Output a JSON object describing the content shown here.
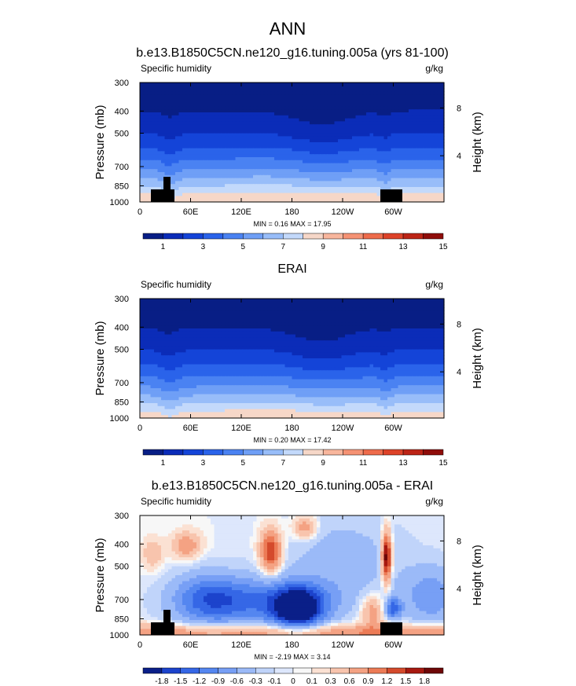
{
  "page_title": "ANN",
  "colors": {
    "abs_scale": [
      "#081e85",
      "#0b2cb8",
      "#1444d8",
      "#2a63ea",
      "#4a82f2",
      "#6f9ff6",
      "#98bdf9",
      "#c3d9fb",
      "#f6d7c8",
      "#f8b69d",
      "#f59274",
      "#ee6b4b",
      "#dd4229",
      "#bc2416",
      "#8f0d0a"
    ],
    "diff_scale": [
      "#0a1f88",
      "#1c43cc",
      "#3567e6",
      "#5486f0",
      "#779ff5",
      "#9bbaf8",
      "#c0d4fa",
      "#dde7fc",
      "#f7f7f7",
      "#fbe1d3",
      "#f8c4ad",
      "#f4a283",
      "#ec7b56",
      "#d44a2c",
      "#a71910",
      "#6e0707"
    ],
    "terrain": "#000000"
  },
  "chart_data": [
    {
      "type": "heatmap",
      "title": "b.e13.B1850C5CN.ne120_g16.tuning.005a (yrs 81-100)",
      "left_label": "Specific humidity",
      "right_label": "g/kg",
      "ylabel": "Pressure (mb)",
      "y2label": "Height (km)",
      "x_ticks": [
        "0",
        "60E",
        "120E",
        "180",
        "120W",
        "60W"
      ],
      "x_tick_lon": [
        0,
        60,
        120,
        180,
        240,
        300
      ],
      "xlim": [
        0,
        360
      ],
      "y_ticks": [
        "300",
        "400",
        "500",
        "700",
        "850",
        "1000"
      ],
      "y_tick_p": [
        300,
        400,
        500,
        700,
        850,
        1000
      ],
      "ylim": [
        300,
        1000
      ],
      "y2_ticks": [
        "8",
        "4"
      ],
      "y2_tick_km": [
        8,
        4
      ],
      "stats": "MIN =  0.16  MAX =  17.95",
      "min": 0.16,
      "max": 17.95,
      "colorbar_labels": [
        "1",
        "3",
        "5",
        "7",
        "9",
        "11",
        "13",
        "15"
      ],
      "colorbar_levels": [
        1,
        3,
        5,
        7,
        9,
        11,
        13,
        15
      ],
      "field": "model"
    },
    {
      "type": "heatmap",
      "title": "ERAI",
      "left_label": "Specific humidity",
      "right_label": "g/kg",
      "ylabel": "Pressure (mb)",
      "y2label": "Height (km)",
      "x_ticks": [
        "0",
        "60E",
        "120E",
        "180",
        "120W",
        "60W"
      ],
      "x_tick_lon": [
        0,
        60,
        120,
        180,
        240,
        300
      ],
      "xlim": [
        0,
        360
      ],
      "y_ticks": [
        "300",
        "400",
        "500",
        "700",
        "850",
        "1000"
      ],
      "y_tick_p": [
        300,
        400,
        500,
        700,
        850,
        1000
      ],
      "ylim": [
        300,
        1000
      ],
      "y2_ticks": [
        "8",
        "4"
      ],
      "y2_tick_km": [
        8,
        4
      ],
      "stats": "MIN =  0.20  MAX =  17.42",
      "min": 0.2,
      "max": 17.42,
      "colorbar_labels": [
        "1",
        "3",
        "5",
        "7",
        "9",
        "11",
        "13",
        "15"
      ],
      "colorbar_levels": [
        1,
        3,
        5,
        7,
        9,
        11,
        13,
        15
      ],
      "field": "obs"
    },
    {
      "type": "heatmap",
      "title": "b.e13.B1850C5CN.ne120_g16.tuning.005a - ERAI",
      "left_label": "Specific humidity",
      "right_label": "g/kg",
      "ylabel": "Pressure (mb)",
      "y2label": "Height (km)",
      "x_ticks": [
        "0",
        "60E",
        "120E",
        "180",
        "120W",
        "60W"
      ],
      "x_tick_lon": [
        0,
        60,
        120,
        180,
        240,
        300
      ],
      "xlim": [
        0,
        360
      ],
      "y_ticks": [
        "300",
        "400",
        "500",
        "700",
        "850",
        "1000"
      ],
      "y_tick_p": [
        300,
        400,
        500,
        700,
        850,
        1000
      ],
      "ylim": [
        300,
        1000
      ],
      "y2_ticks": [
        "8",
        "4"
      ],
      "y2_tick_km": [
        8,
        4
      ],
      "stats": "MIN = -2.19  MAX =  3.14",
      "min": -2.19,
      "max": 3.14,
      "colorbar_labels": [
        "-1.8",
        "-1.5",
        "-1.2",
        "-0.9",
        "-0.6",
        "-0.3",
        "-0.1",
        "0",
        "0.1",
        "0.3",
        "0.6",
        "0.9",
        "1.2",
        "1.5",
        "1.8"
      ],
      "colorbar_levels": [
        -1.8,
        -1.5,
        -1.2,
        -0.9,
        -0.6,
        -0.3,
        -0.1,
        0,
        0.1,
        0.3,
        0.6,
        0.9,
        1.2,
        1.5,
        1.8
      ],
      "field": "diff"
    }
  ]
}
